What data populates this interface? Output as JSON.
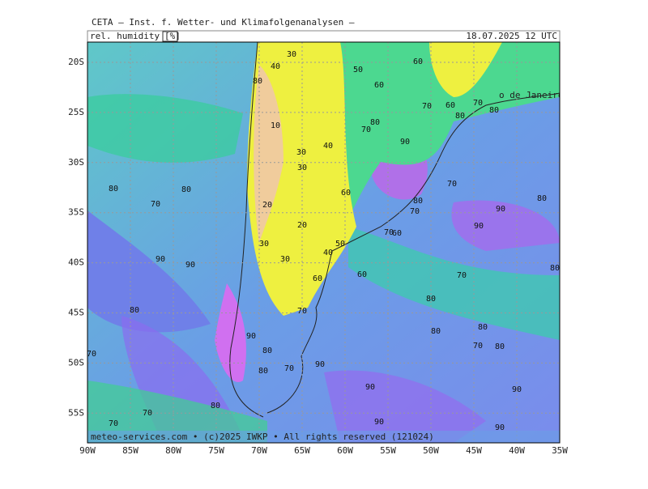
{
  "header": {
    "title": "CETA – Inst. f. Wetter- und Klimafolgenanalysen –",
    "field": "rel. humidity",
    "unit": "[%]",
    "valid_time": "18.07.2025 12 UTC"
  },
  "axes": {
    "lat_labels": [
      "20S",
      "25S",
      "30S",
      "35S",
      "40S",
      "45S",
      "50S",
      "55S"
    ],
    "lon_labels": [
      "90W",
      "85W",
      "80W",
      "75W",
      "70W",
      "65W",
      "60W",
      "55W",
      "50W",
      "45W",
      "40W",
      "35W"
    ]
  },
  "place_label": "o de Janeiro",
  "contour_labels": [
    80,
    70,
    80,
    90,
    90,
    80,
    70,
    90,
    80,
    80,
    70,
    90,
    80,
    70,
    70,
    90,
    90,
    90,
    90,
    70,
    40,
    50,
    60,
    60,
    80,
    70,
    80,
    80,
    70,
    80,
    80,
    90,
    90,
    80,
    70,
    80,
    70,
    70,
    60,
    60,
    90,
    80,
    70,
    40,
    30,
    30,
    20,
    20,
    30,
    30,
    10,
    80,
    40,
    30,
    50,
    60,
    60,
    70,
    60,
    70,
    80,
    80
  ],
  "footer": "meteo-services.com • (c)2025 IWKP • All rights reserved (121024)"
}
